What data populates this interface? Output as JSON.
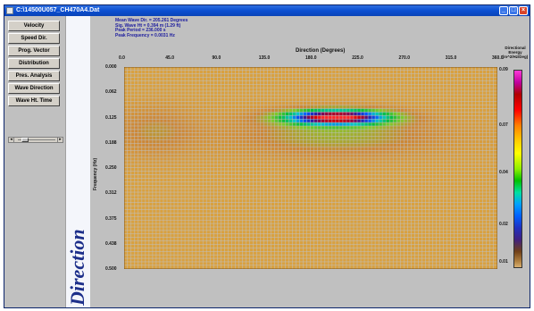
{
  "window": {
    "title": "C:\\14500U057_CH470A4.Dat",
    "minimize_glyph": "_",
    "maximize_glyph": "□",
    "close_glyph": "×"
  },
  "sidebar": {
    "items": [
      {
        "label": "Velocity"
      },
      {
        "label": "Speed Dir."
      },
      {
        "label": "Prog. Vector"
      },
      {
        "label": "Distribution"
      },
      {
        "label": "Pres. Analysis"
      },
      {
        "label": "Wave Direction"
      },
      {
        "label": "Wave Ht. Time"
      }
    ],
    "slider": {
      "left_arrow": "◂",
      "right_arrow": "▸"
    }
  },
  "vertical_label": "Direction",
  "stats": {
    "line1": "Mean Wave Dir. = 205.261 Degrees",
    "line2": "Sig. Wave Ht = 0.394 m (1.29 ft)",
    "line3": "Peak Period = 236.000 s",
    "line4": "Peak Frequency = 0.0031 Hz"
  },
  "chart_data": {
    "type": "heatmap",
    "title": "",
    "xlabel": "Direction (Degrees)",
    "ylabel": "Frequency (Hz)",
    "x_ticks": [
      "0.0",
      "45.0",
      "90.0",
      "135.0",
      "180.0",
      "225.0",
      "270.0",
      "315.0",
      "360.0"
    ],
    "y_ticks": [
      "0.000",
      "0.062",
      "0.125",
      "0.188",
      "0.250",
      "0.312",
      "0.375",
      "0.438",
      "0.500"
    ],
    "xlim": [
      0,
      360
    ],
    "ylim": [
      0.0,
      0.5
    ],
    "grid": true,
    "colorbar": {
      "label": "Directional Energy (m^2/Hz/Deg)",
      "ticks": [
        "0.09",
        "0.07",
        "0.04",
        "0.02",
        "0.01"
      ]
    },
    "peak": {
      "direction": 205.0,
      "frequency": 0.125
    },
    "colors": {
      "background": "#d9a140",
      "low": "#c98436",
      "high": "#ff0000",
      "mid": "#00c000",
      "blue": "#0040ff"
    }
  }
}
